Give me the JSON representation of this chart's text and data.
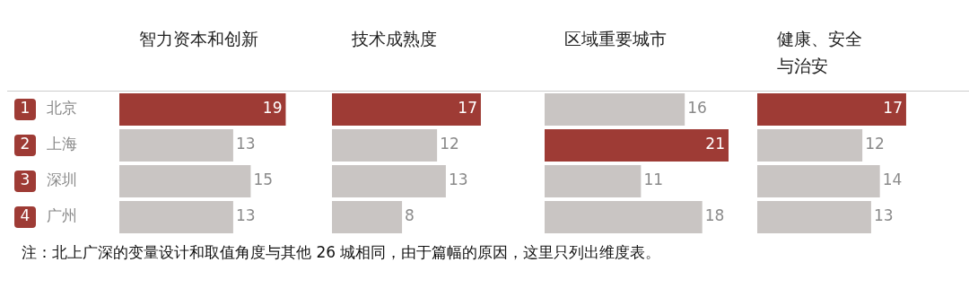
{
  "chart_data": [
    {
      "type": "bar",
      "orientation": "horizontal",
      "title": "智力资本和创新",
      "categories": [
        "1 北京",
        "2 上海",
        "3 深圳",
        "4 广州"
      ],
      "values": [
        19,
        13,
        15,
        13
      ],
      "colors": [
        "#9e3b35",
        "#c9c5c3",
        "#c9c5c3",
        "#c9c5c3"
      ],
      "data_labels": true,
      "tick_labels": "y",
      "annotations": [
        "注：北上广深的变量设计和取值角度与其他 26 城相同，由于篇幅的原因，这里只列出维度表。"
      ]
    },
    {
      "type": "bar",
      "orientation": "horizontal",
      "title": "技术成熟度",
      "categories": [
        null,
        null,
        null,
        null
      ],
      "values": [
        17,
        12,
        13,
        8
      ],
      "colors": [
        "#9e3b35",
        "#c9c5c3",
        "#c9c5c3",
        "#c9c5c3"
      ],
      "data_labels": true
    },
    {
      "type": "bar",
      "orientation": "horizontal",
      "title": "区域重要城市",
      "categories": [
        null,
        null,
        null,
        null
      ],
      "values": [
        16,
        21,
        11,
        18
      ],
      "colors": [
        "#c9c5c3",
        "#9e3b35",
        "#c9c5c3",
        "#c9c5c3"
      ],
      "data_labels": true
    },
    {
      "type": "bar",
      "orientation": "horizontal",
      "title": "健康、安全与治安",
      "categories": [
        null,
        null,
        null,
        null
      ],
      "values": [
        17,
        12,
        14,
        13
      ],
      "colors": [
        "#9e3b35",
        "#c9c5c3",
        "#c9c5c3",
        "#c9c5c3"
      ],
      "data_labels": true
    }
  ]
}
